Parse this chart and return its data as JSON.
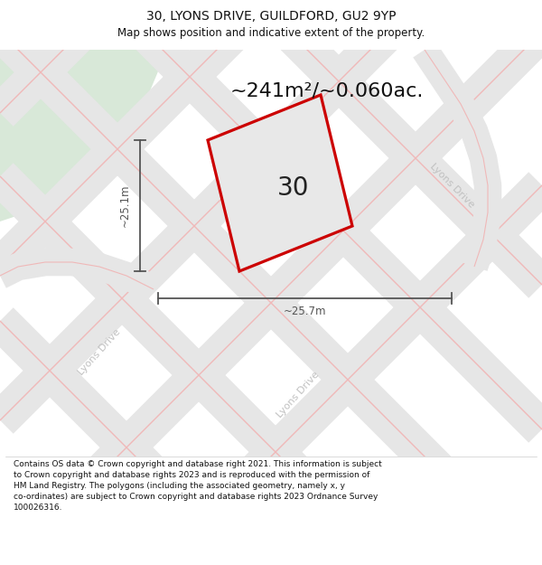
{
  "title_line1": "30, LYONS DRIVE, GUILDFORD, GU2 9YP",
  "title_line2": "Map shows position and indicative extent of the property.",
  "area_text": "~241m²/~0.060ac.",
  "number_label": "30",
  "dim_height_label": "~25.1m",
  "dim_width_label": "~25.7m",
  "footer_lines": [
    "Contains OS data © Crown copyright and database right 2021. This information is subject",
    "to Crown copyright and database rights 2023 and is reproduced with the permission of",
    "HM Land Registry. The polygons (including the associated geometry, namely x, y",
    "co-ordinates) are subject to Crown copyright and database rights 2023 Ordnance Survey",
    "100026316."
  ],
  "bg_map_color": "#f2f2f2",
  "bg_green_color": "#d8e8d8",
  "road_fill_color": "#e6e6e6",
  "road_line_color": "#f0b8b8",
  "plot_fill_color": "#e8e8e8",
  "plot_outline_color": "#cc0000",
  "dim_line_color": "#555555",
  "title_color": "#111111",
  "footer_color": "#111111",
  "area_text_color": "#111111",
  "road_label_color": "#c0c0c0",
  "white": "#ffffff",
  "separator_color": "#cccccc",
  "title_fontsize": 10,
  "subtitle_fontsize": 8.5,
  "area_fontsize": 16,
  "number_fontsize": 20,
  "road_label_fontsize": 8,
  "dim_fontsize": 8.5,
  "footer_fontsize": 6.5
}
